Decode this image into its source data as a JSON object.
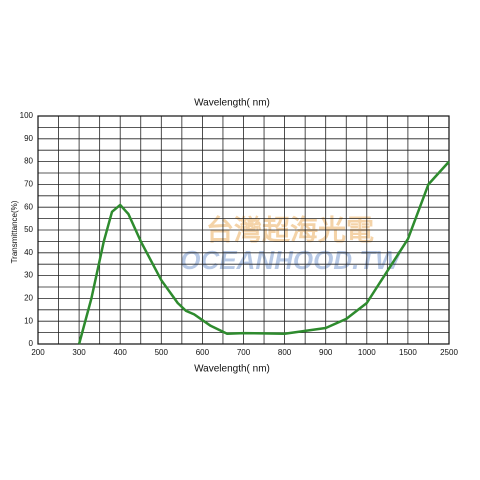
{
  "chart_data": {
    "type": "line",
    "title": "Wavelength( nm)",
    "x_label": "Wavelength( nm)",
    "y_label": "Transmittance(%)",
    "watermark": [
      "台灣超海光電",
      "OCEANHOOD.TW"
    ],
    "x": [
      300,
      330,
      360,
      380,
      400,
      420,
      450,
      500,
      540,
      560,
      580,
      620,
      660,
      700,
      800,
      900,
      950,
      1000,
      1500,
      2000,
      2500
    ],
    "series": [
      {
        "name": "Transmittance",
        "color": "#2e8b2e",
        "values": [
          0,
          20,
          45,
          58,
          61,
          57,
          45,
          28,
          18,
          14.5,
          13,
          8,
          4.5,
          4.8,
          4.5,
          7,
          11,
          18,
          46,
          70,
          80
        ]
      }
    ],
    "xlim": [
      200,
      2500
    ],
    "xticks": [
      200,
      300,
      400,
      500,
      600,
      700,
      800,
      900,
      1000,
      1500,
      2500
    ],
    "ylim": [
      0,
      100
    ],
    "yticks": [
      0,
      10,
      20,
      30,
      40,
      50,
      60,
      70,
      80,
      90,
      100
    ],
    "grid": true
  }
}
